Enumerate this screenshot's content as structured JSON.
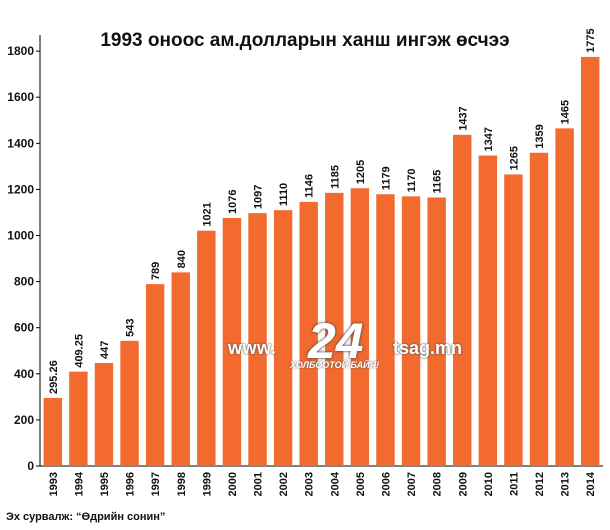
{
  "chart_data": {
    "type": "bar",
    "title": "1993 оноос ам.долларын ханш ингэж өсчээ",
    "categories": [
      "1993",
      "1994",
      "1995",
      "1996",
      "1997",
      "1998",
      "1999",
      "2000",
      "2001",
      "2002",
      "2003",
      "2004",
      "2005",
      "2006",
      "2007",
      "2008",
      "2009",
      "2010",
      "2011",
      "2012",
      "2013",
      "2014"
    ],
    "values": [
      295.26,
      409.25,
      447,
      543,
      789,
      840,
      1021,
      1076,
      1097,
      1110,
      1146,
      1185,
      1205,
      1179,
      1170,
      1165,
      1437,
      1347,
      1265,
      1359,
      1465,
      1775
    ],
    "data_labels": [
      "295.26",
      "409.25",
      "447",
      "543",
      "789",
      "840",
      "1021",
      "1076",
      "1097",
      "1110",
      "1146",
      "1185",
      "1205",
      "1179",
      "1170",
      "1165",
      "1437",
      "1347",
      "1265",
      "1359",
      "1465",
      "1775"
    ],
    "y_ticks": [
      "0",
      "200",
      "400",
      "600",
      "800",
      "1000",
      "1200",
      "1400",
      "1600",
      "1800"
    ],
    "ylim": [
      0,
      1870
    ],
    "xlabel": "",
    "ylabel": "",
    "grid": false,
    "bar_color": "#f26a2e"
  },
  "source": "Эх сурвалж: “Өдрийн сонин”",
  "watermark": {
    "left": "www.",
    "number": "24",
    "right": "tsag.mn",
    "tagline": "ХОЛБООТОЙ БАЙЯ!"
  }
}
